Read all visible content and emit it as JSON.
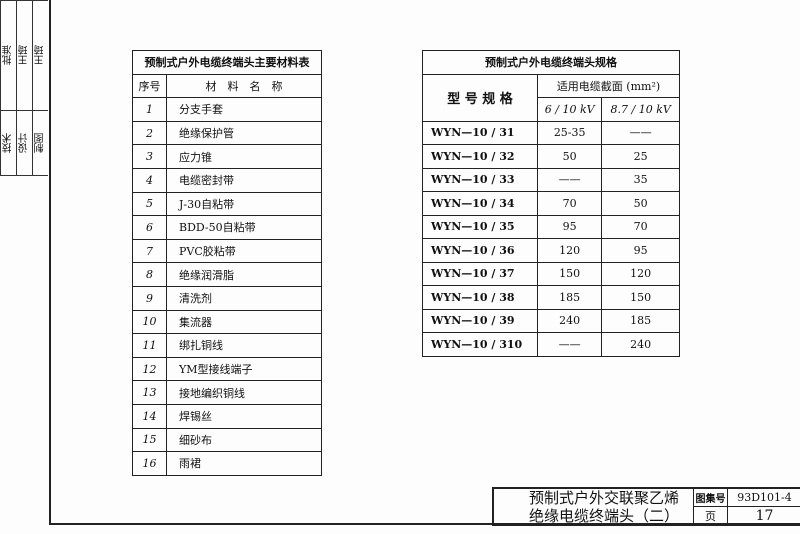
{
  "side_strip": {
    "cells": [
      "批准",
      "王琦",
      "王琦",
      "技术",
      "设计",
      "制图"
    ]
  },
  "materials": {
    "title": "预制式户外电缆终端头主要材料表",
    "headers": [
      "序号",
      "材　料　名　称"
    ],
    "rows": [
      [
        "1",
        "分支手套"
      ],
      [
        "2",
        "绝缘保护管"
      ],
      [
        "3",
        "应力锥"
      ],
      [
        "4",
        "电缆密封带"
      ],
      [
        "5",
        "J-30自粘带"
      ],
      [
        "6",
        "BDD-50自粘带"
      ],
      [
        "7",
        "PVC胶粘带"
      ],
      [
        "8",
        "绝缘润滑脂"
      ],
      [
        "9",
        "清洗剂"
      ],
      [
        "10",
        "集流器"
      ],
      [
        "11",
        "绑扎铜线"
      ],
      [
        "12",
        "YM型接线端子"
      ],
      [
        "13",
        "接地编织铜线"
      ],
      [
        "14",
        "焊锡丝"
      ],
      [
        "15",
        "细砂布"
      ],
      [
        "16",
        "雨裙"
      ]
    ]
  },
  "specs": {
    "title": "预制式户外电缆终端头规格",
    "model_header": "型 号 规 格",
    "section_header": "适用电缆截面 (mm²)",
    "voltage_headers": [
      "6 / 10 kV",
      "8.7 / 10 kV"
    ],
    "rows": [
      [
        "WYN—10 / 31",
        "25-35",
        "——"
      ],
      [
        "WYN—10 / 32",
        "50",
        "25"
      ],
      [
        "WYN—10 / 33",
        "——",
        "35"
      ],
      [
        "WYN—10 / 34",
        "70",
        "50"
      ],
      [
        "WYN—10 / 35",
        "95",
        "70"
      ],
      [
        "WYN—10 / 36",
        "120",
        "95"
      ],
      [
        "WYN—10 / 37",
        "150",
        "120"
      ],
      [
        "WYN—10 / 38",
        "185",
        "150"
      ],
      [
        "WYN—10 / 39",
        "240",
        "185"
      ],
      [
        "WYN—10 / 310",
        "——",
        "240"
      ]
    ]
  },
  "title_block": {
    "line1": "预制式户外交联聚乙烯",
    "line2": "绝缘电缆终端头（二）",
    "atlas_label": "图集号",
    "atlas_no": "93D101-4",
    "page_label": "页",
    "page_no": "17"
  }
}
